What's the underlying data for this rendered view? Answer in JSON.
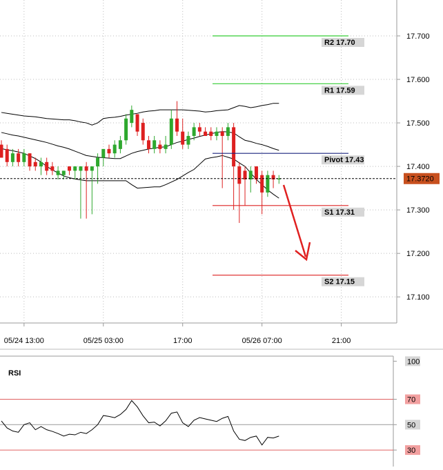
{
  "chart_data": [
    {
      "type": "candlestick",
      "categories": [
        null,
        null,
        null,
        null,
        "05/24 13:00",
        null,
        null,
        null,
        null,
        null,
        null,
        null,
        null,
        null,
        null,
        null,
        null,
        null,
        "05/25 03:00",
        null,
        null,
        null,
        null,
        null,
        null,
        null,
        null,
        null,
        null,
        null,
        null,
        null,
        "17:00",
        null,
        null,
        null,
        null,
        null,
        null,
        null,
        null,
        null,
        null,
        null,
        null,
        null,
        "05/26 07:00",
        null,
        null,
        null,
        null,
        null,
        null,
        null,
        null,
        null,
        null,
        null,
        null,
        null,
        "21:00"
      ],
      "open": [
        17.45,
        17.44,
        17.41,
        17.43,
        17.41,
        17.43,
        17.41,
        17.4,
        17.41,
        17.4,
        17.38,
        17.38,
        17.4,
        17.39,
        17.39,
        17.4,
        17.39,
        17.4,
        17.42,
        17.44,
        17.43,
        17.44,
        17.46,
        17.5,
        17.52,
        17.5,
        17.46,
        17.44,
        17.45,
        17.44,
        17.45,
        17.51,
        17.48,
        17.45,
        17.47,
        17.49,
        17.48,
        17.48,
        17.47,
        17.48,
        17.47,
        17.49,
        17.4,
        17.39,
        17.37,
        17.4,
        17.38,
        17.34,
        17.38,
        17.37,
        null,
        null,
        null,
        null,
        null,
        null,
        null,
        null,
        null,
        null,
        null
      ],
      "high": [
        17.46,
        17.45,
        17.44,
        17.44,
        17.44,
        17.43,
        17.42,
        17.42,
        17.42,
        17.41,
        17.4,
        17.39,
        17.4,
        17.4,
        17.4,
        17.41,
        17.4,
        17.43,
        17.44,
        17.45,
        17.46,
        17.47,
        17.52,
        17.54,
        17.52,
        17.51,
        17.47,
        17.47,
        17.46,
        17.47,
        17.53,
        17.55,
        17.51,
        17.48,
        17.5,
        17.5,
        17.49,
        17.49,
        17.49,
        17.49,
        17.5,
        17.5,
        17.41,
        17.4,
        17.4,
        17.4,
        17.39,
        17.39,
        17.39,
        17.38,
        null,
        null,
        null,
        null,
        null,
        null,
        null,
        null,
        null,
        null,
        null
      ],
      "low": [
        17.42,
        17.4,
        17.4,
        17.4,
        17.4,
        17.39,
        17.39,
        17.38,
        17.38,
        17.38,
        17.37,
        17.37,
        17.38,
        17.37,
        17.28,
        17.28,
        17.29,
        17.36,
        17.4,
        17.42,
        17.42,
        17.43,
        17.45,
        17.49,
        17.47,
        17.45,
        17.43,
        17.43,
        17.43,
        17.43,
        17.44,
        17.47,
        17.44,
        17.44,
        17.46,
        17.47,
        17.47,
        17.46,
        17.46,
        17.35,
        17.46,
        17.3,
        17.27,
        17.31,
        17.34,
        17.36,
        17.29,
        17.33,
        17.35,
        17.36,
        null,
        null,
        null,
        null,
        null,
        null,
        null,
        null,
        null,
        null,
        null
      ],
      "close": [
        17.42,
        17.41,
        17.43,
        17.41,
        17.43,
        17.4,
        17.4,
        17.41,
        17.39,
        17.39,
        17.39,
        17.39,
        17.39,
        17.4,
        17.4,
        17.39,
        17.4,
        17.42,
        17.44,
        17.43,
        17.45,
        17.46,
        17.51,
        17.53,
        17.48,
        17.46,
        17.44,
        17.46,
        17.44,
        17.45,
        17.51,
        17.48,
        17.45,
        17.47,
        17.49,
        17.48,
        17.47,
        17.47,
        17.48,
        17.47,
        17.49,
        17.4,
        17.36,
        17.37,
        17.39,
        17.37,
        17.34,
        17.38,
        17.37,
        17.372,
        null,
        null,
        null,
        null,
        null,
        null,
        null,
        null,
        null,
        null,
        null
      ],
      "up_color": "#2ea82e",
      "down_color": "#dd2020",
      "bands": [
        {
          "color": "#000000",
          "values": [
            17.524,
            17.522,
            17.52,
            17.518,
            17.516,
            17.515,
            17.514,
            17.512,
            17.51,
            17.509,
            17.508,
            17.507,
            17.507,
            17.505,
            17.502,
            17.5,
            17.495,
            17.5,
            17.51,
            17.512,
            17.513,
            17.515,
            17.518,
            17.52,
            17.522,
            17.525,
            17.527,
            17.528,
            17.53,
            17.53,
            17.53,
            17.53,
            17.53,
            17.529,
            17.528,
            17.527,
            17.525,
            17.526,
            17.528,
            17.529,
            17.53,
            17.535,
            17.54,
            17.538,
            17.535,
            17.537,
            17.54,
            17.542,
            17.545,
            17.545,
            null,
            null,
            null,
            null,
            null,
            null,
            null,
            null,
            null,
            null,
            null
          ]
        },
        {
          "color": "#000000",
          "values": [
            17.478,
            17.475,
            17.472,
            17.47,
            17.467,
            17.464,
            17.461,
            17.458,
            17.455,
            17.451,
            17.447,
            17.444,
            17.44,
            17.435,
            17.43,
            17.425,
            17.423,
            17.421,
            17.42,
            17.419,
            17.418,
            17.418,
            17.424,
            17.43,
            17.434,
            17.437,
            17.44,
            17.442,
            17.444,
            17.445,
            17.45,
            17.455,
            17.458,
            17.462,
            17.465,
            17.469,
            17.472,
            17.475,
            17.478,
            17.48,
            17.479,
            17.477,
            17.468,
            17.46,
            17.457,
            17.453,
            17.45,
            17.446,
            17.441,
            17.437,
            null,
            null,
            null,
            null,
            null,
            null,
            null,
            null,
            null,
            null,
            null
          ]
        },
        {
          "color": "#000000",
          "values": [
            17.441,
            17.438,
            17.436,
            17.433,
            17.43,
            17.424,
            17.418,
            17.41,
            17.4,
            17.392,
            17.385,
            17.378,
            17.374,
            17.371,
            17.369,
            17.367,
            17.367,
            17.367,
            17.367,
            17.367,
            17.367,
            17.367,
            17.367,
            17.358,
            17.35,
            17.351,
            17.352,
            17.353,
            17.353,
            17.358,
            17.364,
            17.37,
            17.378,
            17.386,
            17.393,
            17.405,
            17.417,
            17.42,
            17.422,
            17.425,
            17.421,
            17.417,
            17.408,
            17.4,
            17.385,
            17.37,
            17.358,
            17.346,
            17.336,
            17.327,
            null,
            null,
            null,
            null,
            null,
            null,
            null,
            null,
            null,
            null,
            null
          ]
        }
      ],
      "levels": [
        {
          "label": "R2 17.70",
          "value": 17.7,
          "color": "#33cc33"
        },
        {
          "label": "R1 17.59",
          "value": 17.59,
          "color": "#33cc33"
        },
        {
          "label": "Pivot 17.43",
          "value": 17.43,
          "color": "#1a237e"
        },
        {
          "label": "S1 17.31",
          "value": 17.31,
          "color": "#dd2020"
        },
        {
          "label": "S2 17.15",
          "value": 17.15,
          "color": "#dd2020"
        }
      ],
      "last_price": {
        "value": 17.372,
        "label": "17.3720"
      },
      "ylim": [
        17.04,
        17.7825
      ],
      "yticks": [
        {
          "value": 17.7,
          "label": "17.700"
        },
        {
          "value": 17.6,
          "label": "17.600"
        },
        {
          "value": 17.5,
          "label": "17.500"
        },
        {
          "value": 17.4,
          "label": "17.400"
        },
        {
          "value": 17.3,
          "label": "17.300"
        },
        {
          "value": 17.2,
          "label": "17.200"
        },
        {
          "value": 17.1,
          "label": "17.100"
        }
      ],
      "grid": true
    },
    {
      "type": "line",
      "title": "RSI",
      "color": "#000000",
      "values": [
        52.9,
        47.4,
        45,
        44,
        50,
        51.5,
        46,
        48.5,
        46,
        44.7,
        43,
        41,
        42.5,
        42,
        44,
        43,
        46,
        50,
        57.2,
        56.5,
        55.5,
        58,
        62,
        69,
        64,
        57,
        51.5,
        52,
        49,
        53,
        59,
        60,
        51.5,
        48.5,
        53.5,
        55.6,
        54.5,
        53.5,
        52.5,
        55,
        56.5,
        45,
        38.5,
        37.5,
        40,
        41,
        34,
        40,
        39.5,
        41,
        null,
        null,
        null,
        null,
        null,
        null,
        null,
        null,
        null,
        null,
        null
      ],
      "ylim": [
        17,
        104
      ],
      "yticks": [
        100,
        70,
        50,
        30
      ],
      "tick_box_colors": [
        "#d6d6d6",
        "#f2a0a0",
        "#d6d6d6",
        "#f2a0a0"
      ],
      "levels": [
        {
          "value": 70,
          "color": "#e06060"
        },
        {
          "value": 50,
          "color": "#999999"
        },
        {
          "value": 30,
          "color": "#e06060"
        }
      ]
    }
  ]
}
